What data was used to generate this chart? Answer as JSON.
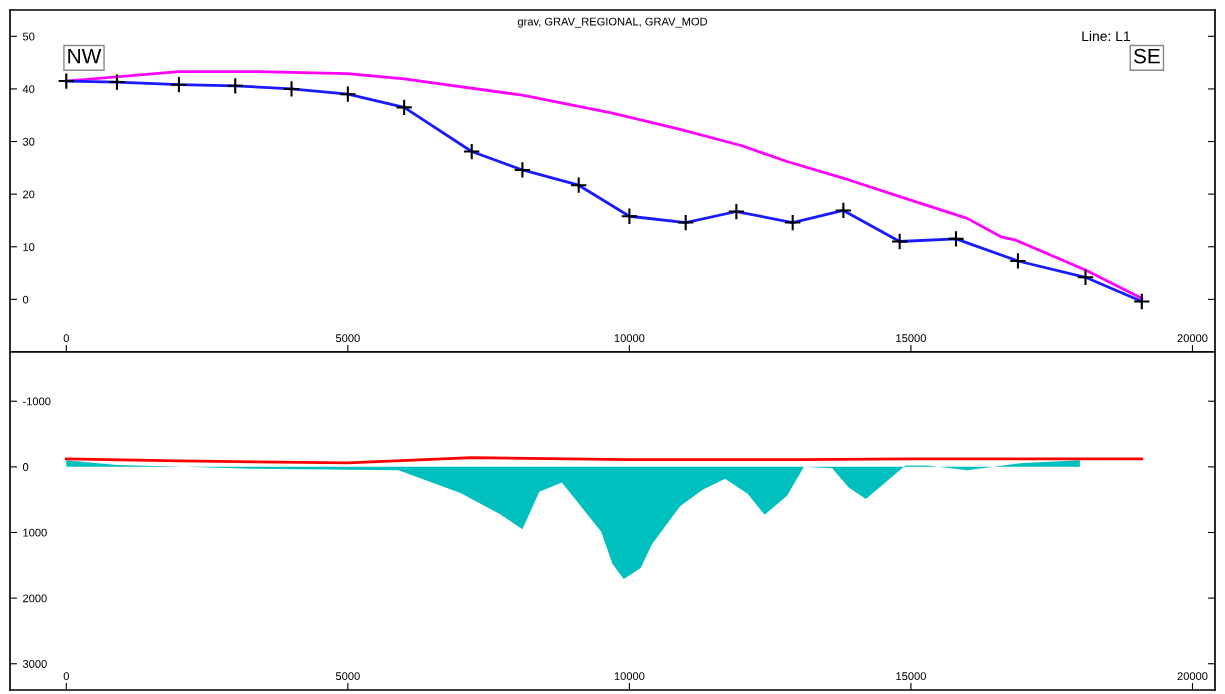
{
  "chart_data": [
    {
      "type": "line",
      "title": "grav, GRAV_REGIONAL, GRAV_MOD",
      "annotations": [
        "NW",
        "SE",
        "Line: L1"
      ],
      "xlim": [
        -1000,
        20400
      ],
      "xticks": [
        0,
        5000,
        10000,
        15000,
        20000
      ],
      "ylim": [
        -10,
        55
      ],
      "yticks": [
        0,
        10,
        20,
        30,
        40,
        50
      ],
      "grid": false,
      "legend": false,
      "series": [
        {
          "color": "#ff00ff",
          "marker": "none",
          "x": [
            0,
            2000,
            3400,
            5000,
            6000,
            8100,
            9700,
            10900,
            12000,
            12800,
            13900,
            14900,
            16000,
            16600,
            16850,
            18100,
            19100
          ],
          "values": [
            41.5,
            43.3,
            43.3,
            42.9,
            41.9,
            38.8,
            35.4,
            32.3,
            29.2,
            26.2,
            22.7,
            19.2,
            15.4,
            11.9,
            11.3,
            5.6,
            0.2
          ]
        },
        {
          "color": "#1a1aff",
          "marker": "cross",
          "x": [
            0,
            900,
            2000,
            3000,
            4000,
            5000,
            6000,
            7200,
            8100,
            9100,
            10000,
            11000,
            11900,
            12900,
            13800,
            14800,
            15800,
            16900,
            18100,
            19100
          ],
          "values": [
            41.5,
            41.3,
            40.8,
            40.6,
            40.0,
            39.0,
            36.5,
            28.1,
            24.6,
            21.7,
            15.8,
            14.6,
            16.7,
            14.6,
            16.9,
            11.0,
            11.5,
            7.3,
            4.2,
            -0.4
          ]
        }
      ]
    },
    {
      "type": "area",
      "xlim": [
        -1000,
        20400
      ],
      "xticks": [
        0,
        5000,
        10000,
        15000,
        20000
      ],
      "ylim": [
        3400,
        -1750
      ],
      "yticks": [
        -1000,
        0,
        1000,
        2000,
        3000
      ],
      "grid": false,
      "legend": false,
      "series": [
        {
          "color": "#00bfbf",
          "x": [
            0,
            900,
            2100,
            3300,
            5900,
            7000,
            7700,
            8100,
            8400,
            8800,
            9100,
            9500,
            9700,
            9900,
            10200,
            10400,
            10900,
            11300,
            11700,
            12100,
            12400,
            12800,
            13100,
            13600,
            13900,
            14200,
            14900,
            15300,
            16000,
            16700,
            17000,
            18000
          ],
          "values": [
            -100,
            -30,
            0,
            30,
            50,
            400,
            720,
            950,
            380,
            240,
            560,
            990,
            1480,
            1710,
            1540,
            1180,
            600,
            350,
            180,
            410,
            730,
            440,
            0,
            20,
            320,
            490,
            -20,
            -20,
            50,
            -30,
            -60,
            -100
          ]
        },
        {
          "type": "line",
          "color": "#ff0000",
          "marker": "none",
          "x": [
            0,
            2000,
            5000,
            7200,
            10000,
            13000,
            15000,
            19100
          ],
          "values": [
            -120,
            -90,
            -60,
            -140,
            -110,
            -110,
            -120,
            -120
          ]
        }
      ]
    }
  ]
}
